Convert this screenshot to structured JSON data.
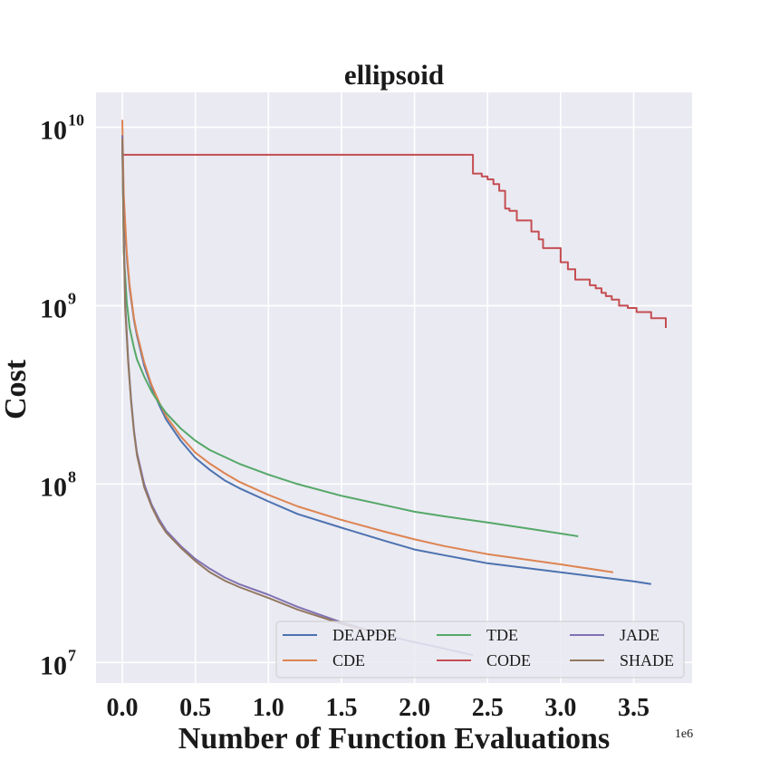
{
  "chart_data": {
    "type": "line",
    "title": "ellipsoid",
    "xlabel": "Number of Function Evaluations",
    "ylabel": "Cost",
    "x_offset_text": "1e6",
    "xscale": "linear",
    "yscale": "log",
    "xlim": [
      -0.18,
      3.9
    ],
    "ylim_log10": [
      6.885,
      10.195
    ],
    "xticks": [
      0.0,
      0.5,
      1.0,
      1.5,
      2.0,
      2.5,
      3.0,
      3.5
    ],
    "xtick_labels": [
      "0.0",
      "0.5",
      "1.0",
      "1.5",
      "2.0",
      "2.5",
      "3.0",
      "3.5"
    ],
    "yticks_exponent": [
      7,
      8,
      9,
      10
    ],
    "ytick_base": "10",
    "grid": true,
    "background": "#eaeaf2",
    "legend_position": "lower-right",
    "legend_columns": 3,
    "series": [
      {
        "name": "DEAPDE",
        "color": "#4c72b0",
        "x": [
          0,
          0.01,
          0.03,
          0.05,
          0.08,
          0.1,
          0.15,
          0.2,
          0.25,
          0.3,
          0.4,
          0.5,
          0.6,
          0.7,
          0.8,
          1.0,
          1.2,
          1.5,
          1.8,
          2.0,
          2.2,
          2.5,
          3.0,
          3.5,
          3.62
        ],
        "y": [
          8500000000.0,
          3500000000.0,
          1900000000.0,
          1250000000.0,
          830000000.0,
          680000000.0,
          460000000.0,
          350000000.0,
          280000000.0,
          230000000.0,
          175000000.0,
          140000000.0,
          120000000.0,
          105000000.0,
          95000000.0,
          80000000.0,
          68000000.0,
          57000000.0,
          48000000.0,
          43000000.0,
          40000000.0,
          36000000.0,
          32000000.0,
          28500000.0,
          27500000.0
        ]
      },
      {
        "name": "CDE",
        "color": "#dd8452",
        "x": [
          0,
          0.01,
          0.03,
          0.05,
          0.08,
          0.1,
          0.15,
          0.2,
          0.25,
          0.3,
          0.4,
          0.5,
          0.6,
          0.7,
          0.8,
          1.0,
          1.2,
          1.5,
          1.8,
          2.0,
          2.2,
          2.5,
          3.0,
          3.36
        ],
        "y": [
          11000000000.0,
          4200000000.0,
          2000000000.0,
          1300000000.0,
          850000000.0,
          700000000.0,
          480000000.0,
          360000000.0,
          290000000.0,
          240000000.0,
          185000000.0,
          150000000.0,
          130000000.0,
          115000000.0,
          103000000.0,
          87000000.0,
          75000000.0,
          63000000.0,
          54000000.0,
          49000000.0,
          45000000.0,
          40500000.0,
          35500000.0,
          32000000.0
        ]
      },
      {
        "name": "TDE",
        "color": "#55a868",
        "x": [
          0,
          0.01,
          0.03,
          0.05,
          0.08,
          0.1,
          0.15,
          0.2,
          0.25,
          0.3,
          0.4,
          0.5,
          0.6,
          0.7,
          0.8,
          1.0,
          1.2,
          1.5,
          1.8,
          2.0,
          2.2,
          2.5,
          2.8,
          3.12
        ],
        "y": [
          8500000000.0,
          2000000000.0,
          1050000000.0,
          750000000.0,
          580000000.0,
          500000000.0,
          400000000.0,
          330000000.0,
          285000000.0,
          250000000.0,
          205000000.0,
          175000000.0,
          155000000.0,
          142000000.0,
          130000000.0,
          113000000.0,
          100000000.0,
          86000000.0,
          76000000.0,
          70000000.0,
          66000000.0,
          61000000.0,
          56000000.0,
          51000000.0
        ]
      },
      {
        "name": "CODE",
        "color": "#c44e52",
        "step": true,
        "x": [
          0,
          0.005,
          2.4,
          2.46,
          2.5,
          2.54,
          2.58,
          2.62,
          2.65,
          2.7,
          2.8,
          2.85,
          2.88,
          2.93,
          3.0,
          3.05,
          3.1,
          3.2,
          3.24,
          3.28,
          3.31,
          3.35,
          3.4,
          3.46,
          3.52,
          3.62,
          3.72
        ],
        "y": [
          7000000000.0,
          7000000000.0,
          5500000000.0,
          5300000000.0,
          5100000000.0,
          4800000000.0,
          4400000000.0,
          3500000000.0,
          3400000000.0,
          3000000000.0,
          2600000000.0,
          2350000000.0,
          2100000000.0,
          2100000000.0,
          1750000000.0,
          1600000000.0,
          1400000000.0,
          1300000000.0,
          1250000000.0,
          1180000000.0,
          1130000000.0,
          1080000000.0,
          1000000000.0,
          970000000.0,
          920000000.0,
          850000000.0,
          750000000.0
        ]
      },
      {
        "name": "JADE",
        "color": "#8172b3",
        "x": [
          0,
          0.01,
          0.02,
          0.04,
          0.06,
          0.08,
          0.1,
          0.15,
          0.2,
          0.25,
          0.3,
          0.4,
          0.5,
          0.6,
          0.7,
          0.8,
          1.0,
          1.2,
          1.5,
          1.8,
          2.0,
          2.2,
          2.4
        ],
        "y": [
          9000000000.0,
          2500000000.0,
          1000000000.0,
          500000000.0,
          300000000.0,
          200000000.0,
          150000000.0,
          100000000.0,
          77000000.0,
          64000000.0,
          55000000.0,
          45000000.0,
          38000000.0,
          33500000.0,
          30000000.0,
          27500000.0,
          24000000.0,
          20500000.0,
          16800000.0,
          14200000.0,
          13000000.0,
          12000000.0,
          11000000.0
        ]
      },
      {
        "name": "SHADE",
        "color": "#937860",
        "x": [
          0,
          0.01,
          0.02,
          0.04,
          0.06,
          0.08,
          0.1,
          0.15,
          0.2,
          0.25,
          0.3,
          0.4,
          0.5,
          0.6,
          0.7,
          0.8,
          1.0,
          1.2,
          1.5,
          1.7
        ],
        "y": [
          8700000000.0,
          2400000000.0,
          950000000.0,
          480000000.0,
          290000000.0,
          195000000.0,
          145000000.0,
          96000000.0,
          75000000.0,
          62000000.0,
          53500000.0,
          44000000.0,
          37000000.0,
          32000000.0,
          28800000.0,
          26500000.0,
          23000000.0,
          19800000.0,
          16500000.0,
          15000000.0
        ]
      }
    ]
  }
}
